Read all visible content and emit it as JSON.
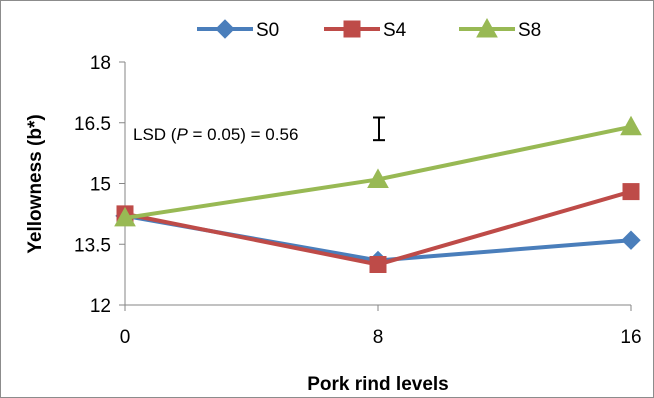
{
  "chart_data": {
    "type": "line",
    "x": [
      0,
      8,
      16
    ],
    "xlabel": "Pork rind levels",
    "ylabel": "Yellowness (b*)",
    "ylim": [
      12,
      18
    ],
    "yticks": [
      "12",
      "13.5",
      "15",
      "16.5",
      "18"
    ],
    "xticks": [
      "0",
      "8",
      "16"
    ],
    "legend_position": "top",
    "grid": false,
    "series": [
      {
        "name": "S0",
        "values": [
          14.2,
          13.1,
          13.6
        ],
        "color": "#4A7EBB",
        "marker": "diamond"
      },
      {
        "name": "S4",
        "values": [
          14.25,
          13.0,
          14.8
        ],
        "color": "#BE4B48",
        "marker": "square"
      },
      {
        "name": "S8",
        "values": [
          14.15,
          15.1,
          16.4
        ],
        "color": "#98B954",
        "marker": "triangle"
      }
    ],
    "annotation": {
      "prefix": "LSD (",
      "italic": "P",
      "suffix": " = 0.05) = 0.56",
      "lsd_value": 0.56,
      "error_bar_center": 16.35
    }
  }
}
